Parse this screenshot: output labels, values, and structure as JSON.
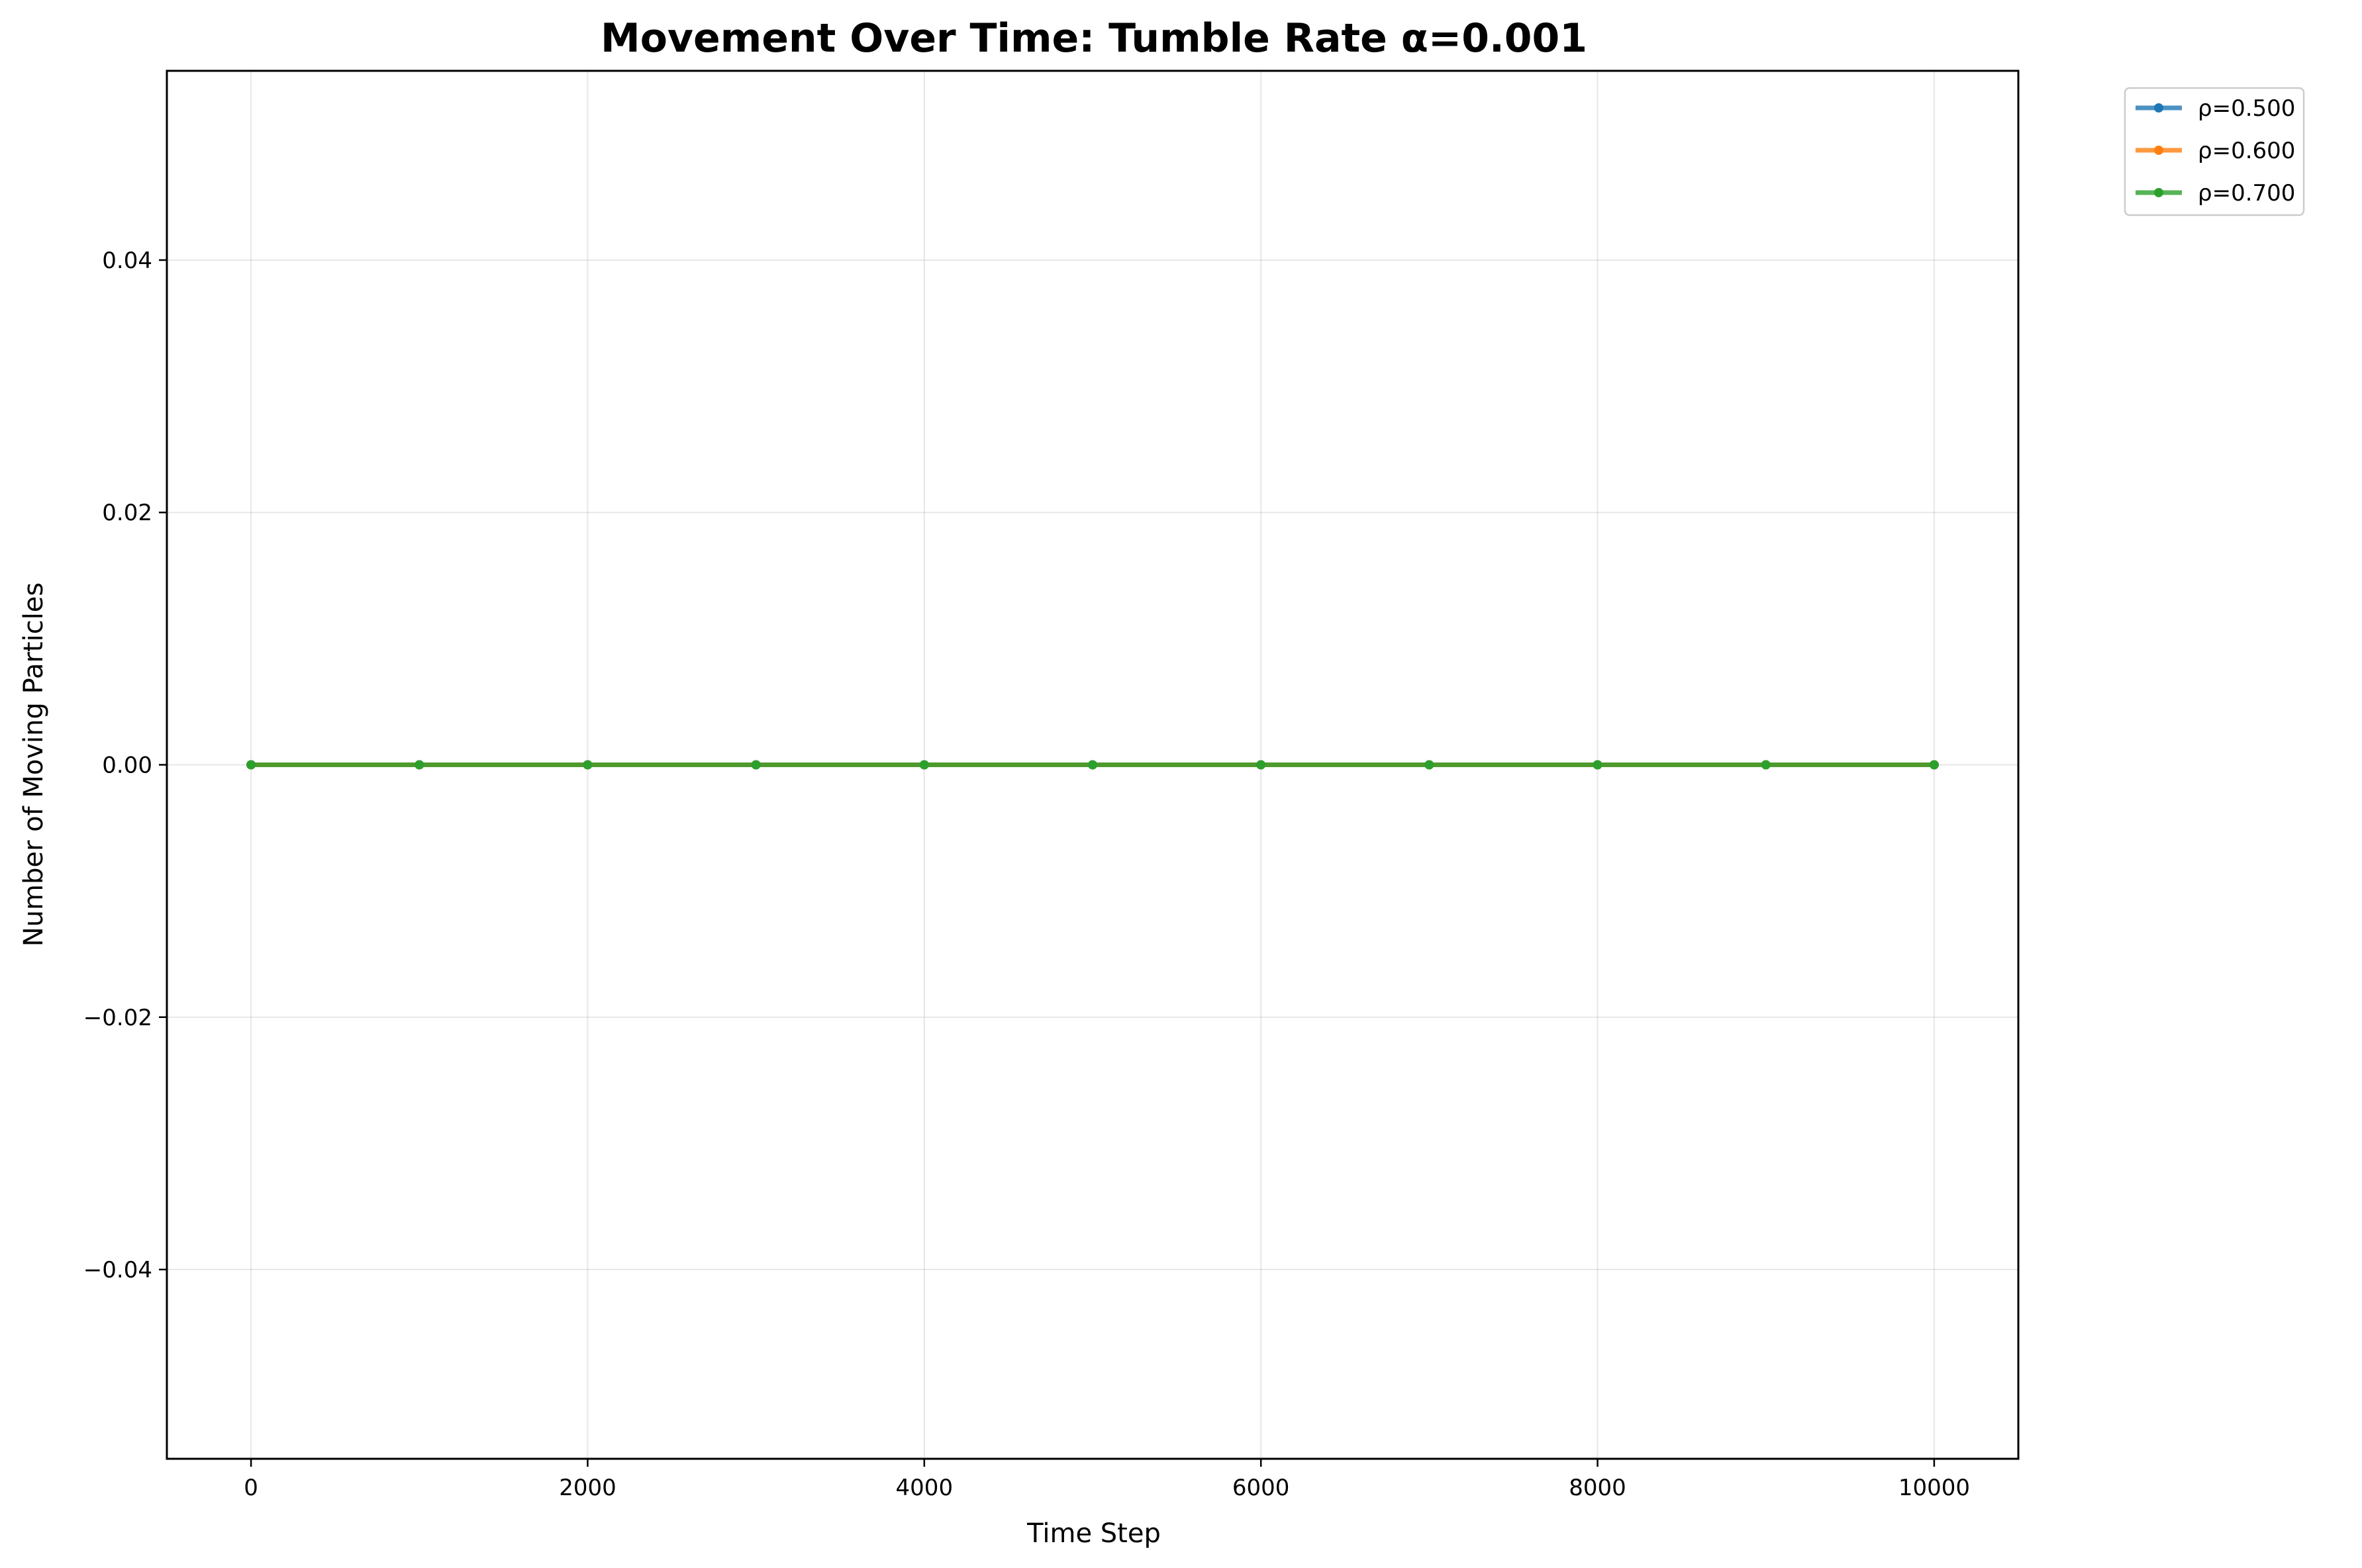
{
  "chart_data": {
    "type": "line",
    "title": "Movement Over Time: Tumble Rate α=0.001",
    "xlabel": "Time Step",
    "ylabel": "Number of Moving Particles",
    "xlim": [
      -500,
      10500
    ],
    "ylim": [
      -0.055,
      0.055
    ],
    "xticks": [
      0,
      2000,
      4000,
      6000,
      8000,
      10000
    ],
    "xtick_labels": [
      "0",
      "2000",
      "4000",
      "6000",
      "8000",
      "10000"
    ],
    "yticks": [
      -0.04,
      -0.02,
      0.0,
      0.02,
      0.04
    ],
    "ytick_labels": [
      "−0.04",
      "−0.02",
      "0.00",
      "0.02",
      "0.04"
    ],
    "grid": true,
    "legend_position": "outside top-right",
    "x": [
      0,
      1000,
      2000,
      3000,
      4000,
      5000,
      6000,
      7000,
      8000,
      9000,
      10000
    ],
    "series": [
      {
        "name": "ρ=0.500",
        "color": "#1f77b4",
        "values": [
          0,
          0,
          0,
          0,
          0,
          0,
          0,
          0,
          0,
          0,
          0
        ]
      },
      {
        "name": "ρ=0.600",
        "color": "#ff7f0e",
        "values": [
          0,
          0,
          0,
          0,
          0,
          0,
          0,
          0,
          0,
          0,
          0
        ]
      },
      {
        "name": "ρ=0.700",
        "color": "#2ca02c",
        "values": [
          0,
          0,
          0,
          0,
          0,
          0,
          0,
          0,
          0,
          0,
          0
        ]
      }
    ]
  }
}
